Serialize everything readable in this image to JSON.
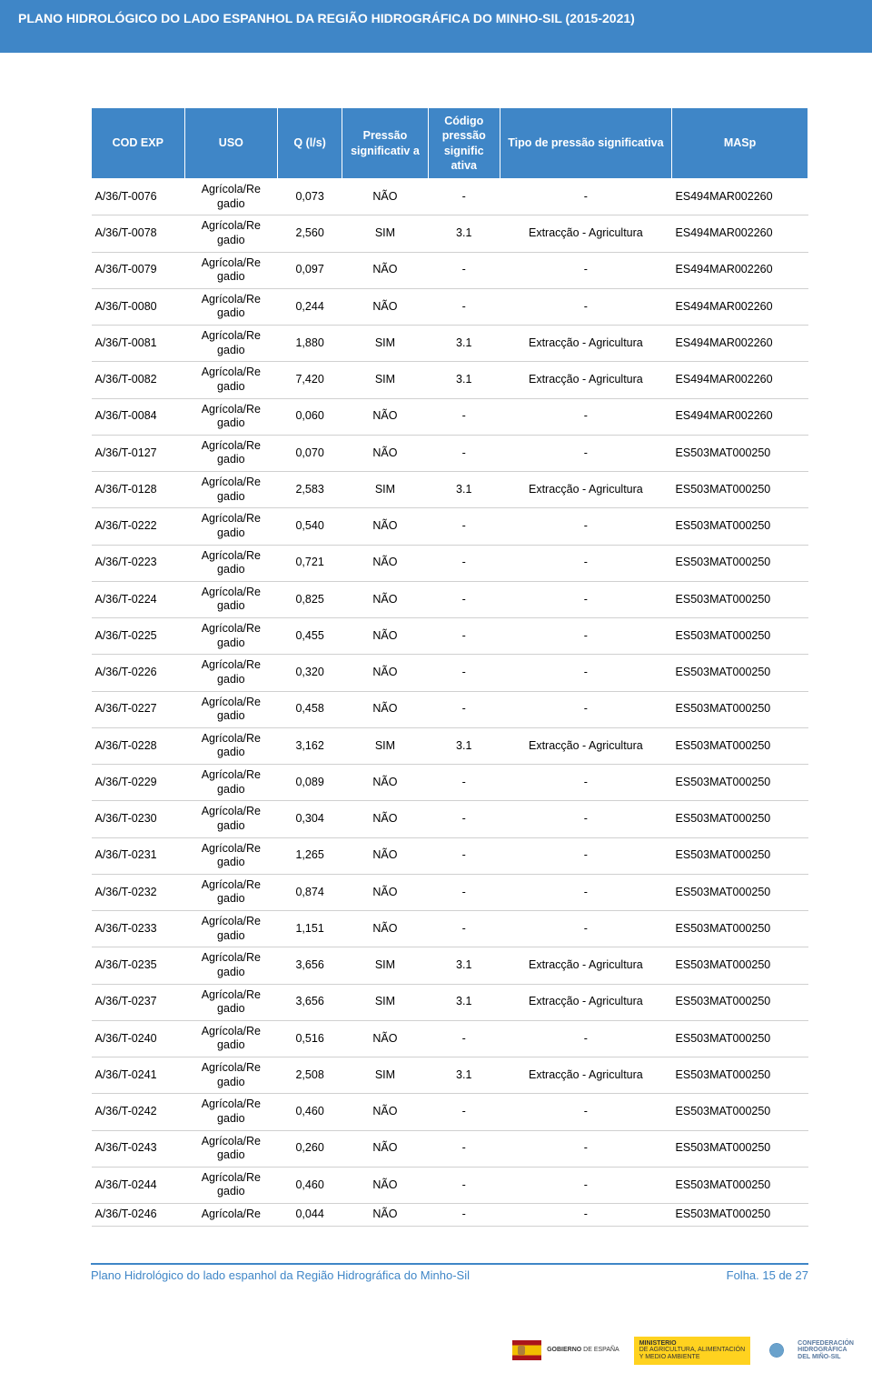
{
  "banner_title": "PLANO HIDROLÓGICO DO LADO ESPANHOL DA REGIÃO HIDROGRÁFICA DO MINHO-SIL (2015-2021)",
  "columns": [
    "COD EXP",
    "USO",
    "Q (l/s)",
    "Pressão significativ a",
    "Código pressão signific ativa",
    "Tipo de pressão significativa",
    "MASp"
  ],
  "uso_label": "Agrícola/Re gadio",
  "uso_label_last": "Agrícola/Re",
  "rows": [
    {
      "cod": "A/36/T-0076",
      "q": "0,073",
      "p": "NÃO",
      "cp": "-",
      "tp": "-",
      "m": "ES494MAR002260"
    },
    {
      "cod": "A/36/T-0078",
      "q": "2,560",
      "p": "SIM",
      "cp": "3.1",
      "tp": "Extracção - Agricultura",
      "m": "ES494MAR002260"
    },
    {
      "cod": "A/36/T-0079",
      "q": "0,097",
      "p": "NÃO",
      "cp": "-",
      "tp": "-",
      "m": "ES494MAR002260"
    },
    {
      "cod": "A/36/T-0080",
      "q": "0,244",
      "p": "NÃO",
      "cp": "-",
      "tp": "-",
      "m": "ES494MAR002260"
    },
    {
      "cod": "A/36/T-0081",
      "q": "1,880",
      "p": "SIM",
      "cp": "3.1",
      "tp": "Extracção - Agricultura",
      "m": "ES494MAR002260"
    },
    {
      "cod": "A/36/T-0082",
      "q": "7,420",
      "p": "SIM",
      "cp": "3.1",
      "tp": "Extracção - Agricultura",
      "m": "ES494MAR002260"
    },
    {
      "cod": "A/36/T-0084",
      "q": "0,060",
      "p": "NÃO",
      "cp": "-",
      "tp": "-",
      "m": "ES494MAR002260"
    },
    {
      "cod": "A/36/T-0127",
      "q": "0,070",
      "p": "NÃO",
      "cp": "-",
      "tp": "-",
      "m": "ES503MAT000250"
    },
    {
      "cod": "A/36/T-0128",
      "q": "2,583",
      "p": "SIM",
      "cp": "3.1",
      "tp": "Extracção - Agricultura",
      "m": "ES503MAT000250"
    },
    {
      "cod": "A/36/T-0222",
      "q": "0,540",
      "p": "NÃO",
      "cp": "-",
      "tp": "-",
      "m": "ES503MAT000250"
    },
    {
      "cod": "A/36/T-0223",
      "q": "0,721",
      "p": "NÃO",
      "cp": "-",
      "tp": "-",
      "m": "ES503MAT000250"
    },
    {
      "cod": "A/36/T-0224",
      "q": "0,825",
      "p": "NÃO",
      "cp": "-",
      "tp": "-",
      "m": "ES503MAT000250"
    },
    {
      "cod": "A/36/T-0225",
      "q": "0,455",
      "p": "NÃO",
      "cp": "-",
      "tp": "-",
      "m": "ES503MAT000250"
    },
    {
      "cod": "A/36/T-0226",
      "q": "0,320",
      "p": "NÃO",
      "cp": "-",
      "tp": "-",
      "m": "ES503MAT000250"
    },
    {
      "cod": "A/36/T-0227",
      "q": "0,458",
      "p": "NÃO",
      "cp": "-",
      "tp": "-",
      "m": "ES503MAT000250"
    },
    {
      "cod": "A/36/T-0228",
      "q": "3,162",
      "p": "SIM",
      "cp": "3.1",
      "tp": "Extracção - Agricultura",
      "m": "ES503MAT000250"
    },
    {
      "cod": "A/36/T-0229",
      "q": "0,089",
      "p": "NÃO",
      "cp": "-",
      "tp": "-",
      "m": "ES503MAT000250"
    },
    {
      "cod": "A/36/T-0230",
      "q": "0,304",
      "p": "NÃO",
      "cp": "-",
      "tp": "-",
      "m": "ES503MAT000250"
    },
    {
      "cod": "A/36/T-0231",
      "q": "1,265",
      "p": "NÃO",
      "cp": "-",
      "tp": "-",
      "m": "ES503MAT000250"
    },
    {
      "cod": "A/36/T-0232",
      "q": "0,874",
      "p": "NÃO",
      "cp": "-",
      "tp": "-",
      "m": "ES503MAT000250"
    },
    {
      "cod": "A/36/T-0233",
      "q": "1,151",
      "p": "NÃO",
      "cp": "-",
      "tp": "-",
      "m": "ES503MAT000250"
    },
    {
      "cod": "A/36/T-0235",
      "q": "3,656",
      "p": "SIM",
      "cp": "3.1",
      "tp": "Extracção - Agricultura",
      "m": "ES503MAT000250"
    },
    {
      "cod": "A/36/T-0237",
      "q": "3,656",
      "p": "SIM",
      "cp": "3.1",
      "tp": "Extracção - Agricultura",
      "m": "ES503MAT000250"
    },
    {
      "cod": "A/36/T-0240",
      "q": "0,516",
      "p": "NÃO",
      "cp": "-",
      "tp": "-",
      "m": "ES503MAT000250"
    },
    {
      "cod": "A/36/T-0241",
      "q": "2,508",
      "p": "SIM",
      "cp": "3.1",
      "tp": "Extracção - Agricultura",
      "m": "ES503MAT000250"
    },
    {
      "cod": "A/36/T-0242",
      "q": "0,460",
      "p": "NÃO",
      "cp": "-",
      "tp": "-",
      "m": "ES503MAT000250"
    },
    {
      "cod": "A/36/T-0243",
      "q": "0,260",
      "p": "NÃO",
      "cp": "-",
      "tp": "-",
      "m": "ES503MAT000250"
    },
    {
      "cod": "A/36/T-0244",
      "q": "0,460",
      "p": "NÃO",
      "cp": "-",
      "tp": "-",
      "m": "ES503MAT000250"
    },
    {
      "cod": "A/36/T-0246",
      "q": "0,044",
      "p": "NÃO",
      "cp": "-",
      "tp": "-",
      "m": "ES503MAT000250"
    }
  ],
  "footer_left": "Plano Hidrológico do lado espanhol da Região Hidrográfica do Minho-Sil",
  "footer_right": "Folha. 15 de 27",
  "logo_gob_line1": "GOBIERNO",
  "logo_gob_line2": "DE ESPAÑA",
  "logo_min_line1": "MINISTERIO",
  "logo_min_line2": "DE AGRICULTURA, ALIMENTACIÓN",
  "logo_min_line3": "Y MEDIO AMBIENTE",
  "logo_chd_line1": "CONFEDERACIÓN",
  "logo_chd_line2": "HIDROGRÁFICA",
  "logo_chd_line3": "DEL MIÑO-SIL"
}
